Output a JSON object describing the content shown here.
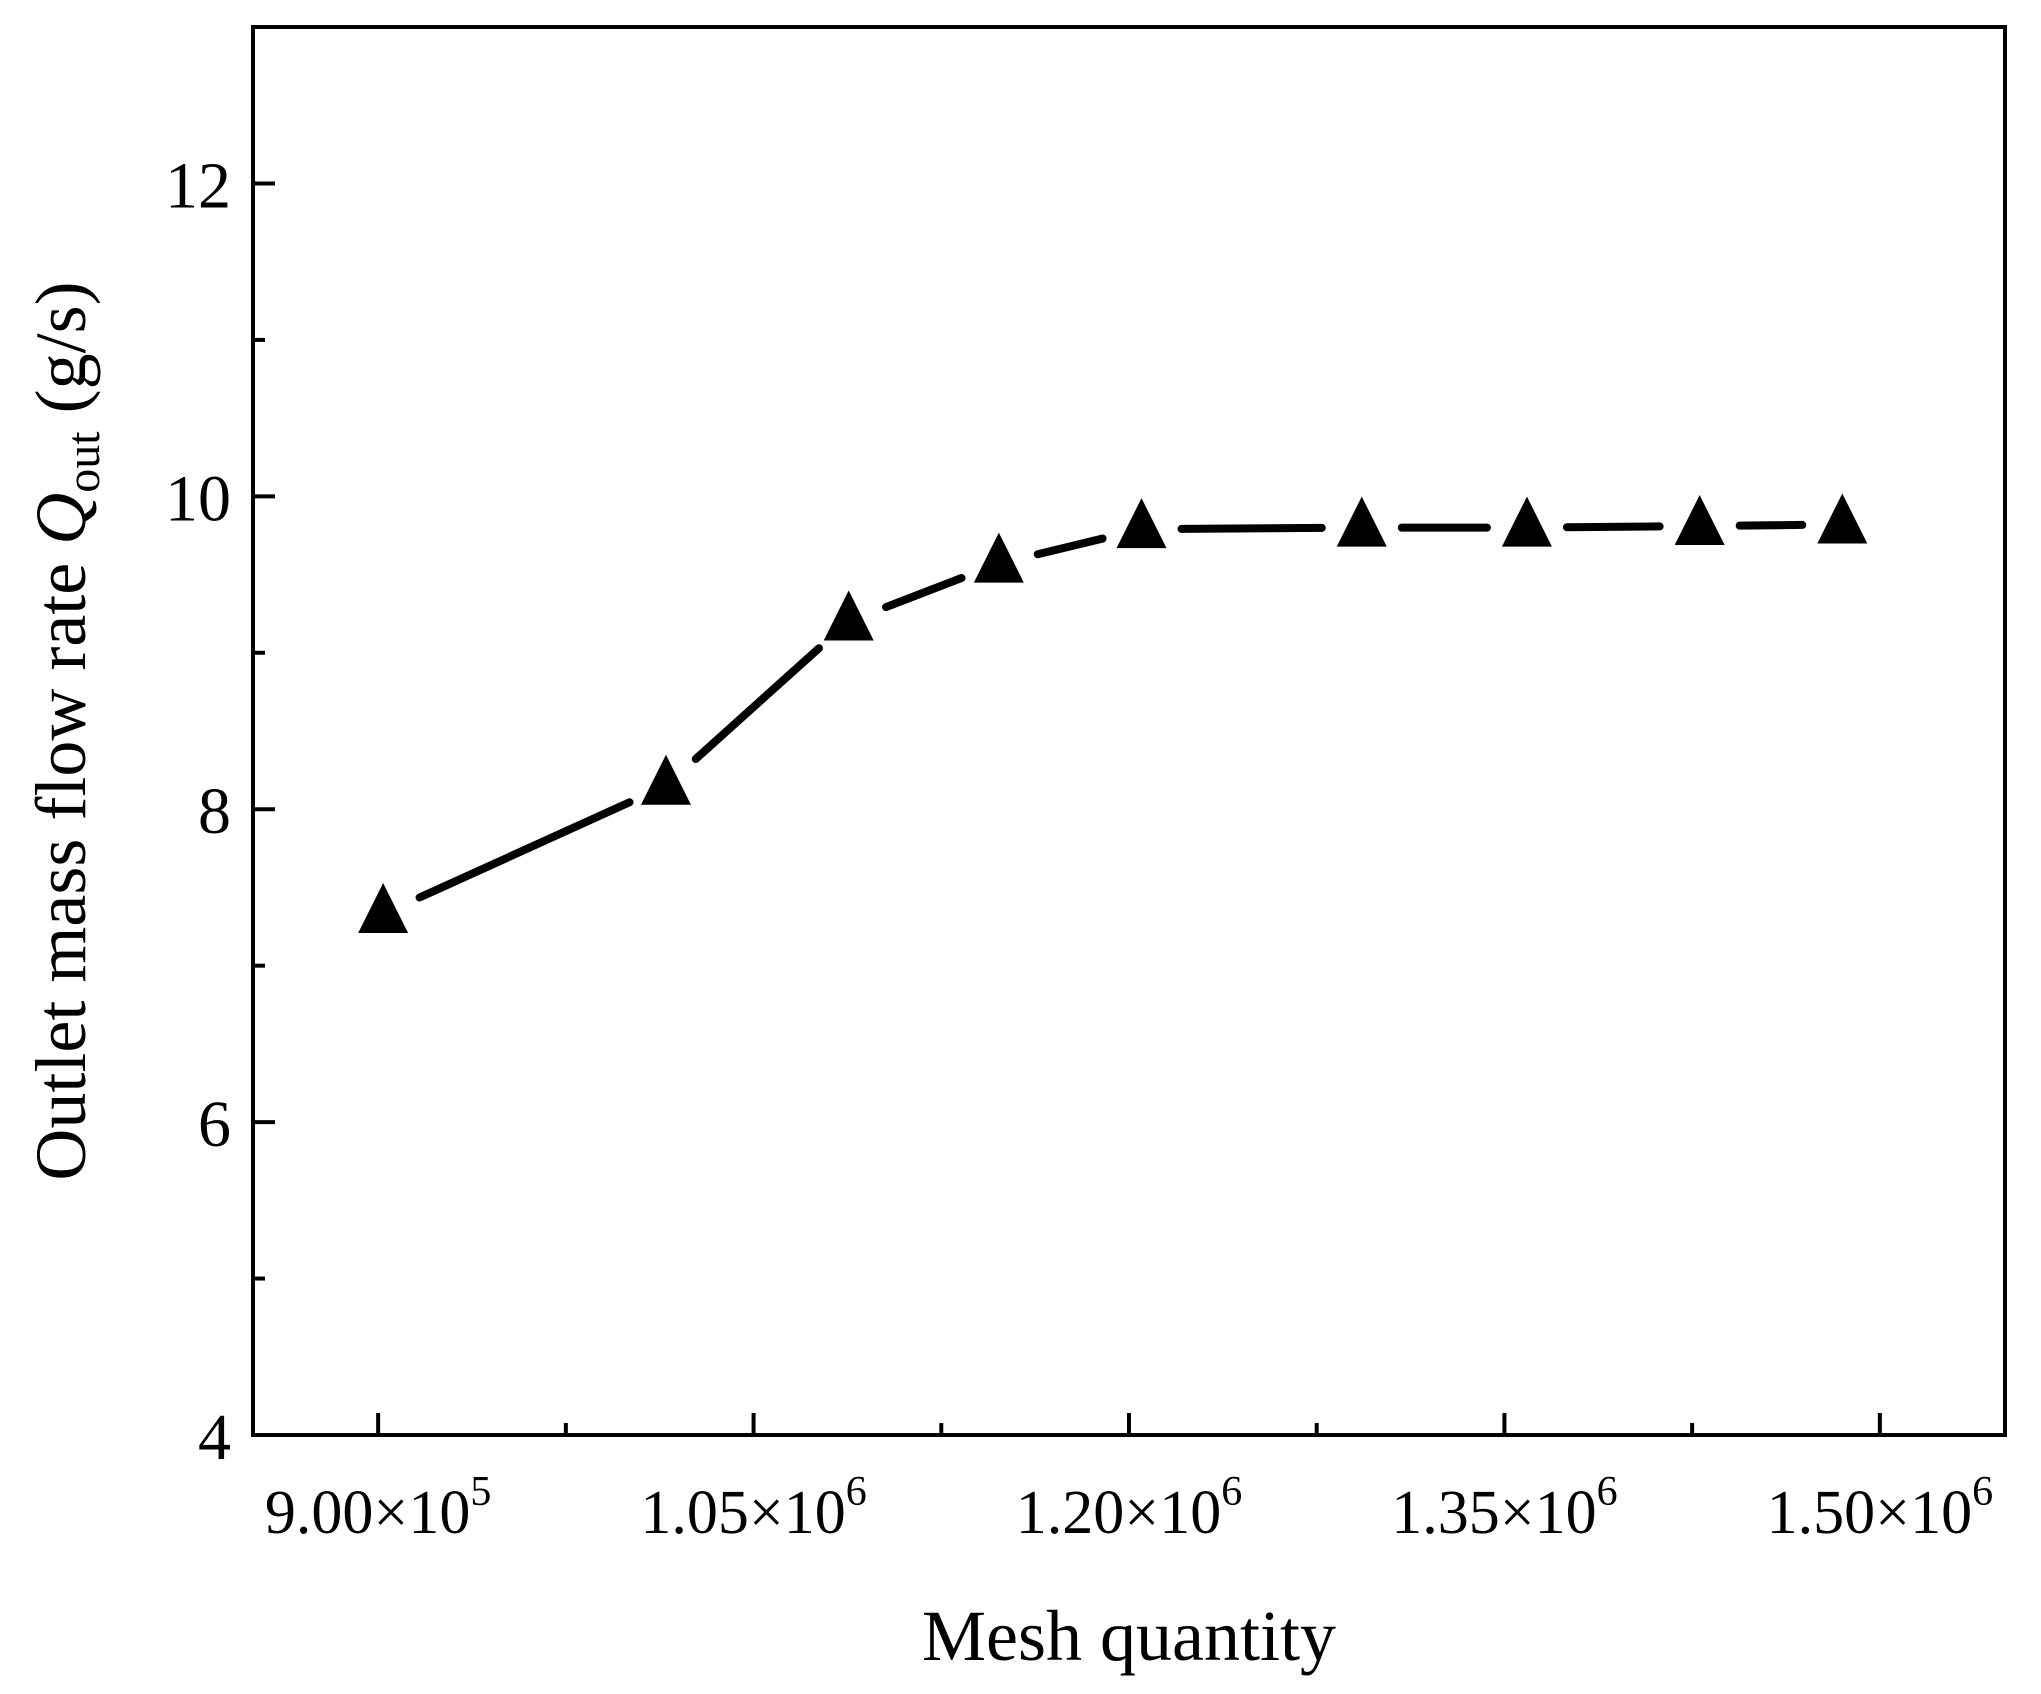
{
  "chart_data": {
    "type": "line",
    "title": "",
    "xlabel": "Mesh quantity",
    "ylabel": {
      "prefix": "Outlet mass flow rate ",
      "symbol": "Q",
      "subscript": "out",
      "unit": " (g/s)"
    },
    "xlim": [
      850000,
      1550000
    ],
    "ylim": [
      4,
      13
    ],
    "x_ticks": [
      {
        "value": 900000,
        "mantissa": "9.00",
        "exponent": "5"
      },
      {
        "value": 1050000,
        "mantissa": "1.05",
        "exponent": "6"
      },
      {
        "value": 1200000,
        "mantissa": "1.20",
        "exponent": "6"
      },
      {
        "value": 1350000,
        "mantissa": "1.35",
        "exponent": "6"
      },
      {
        "value": 1500000,
        "mantissa": "1.50",
        "exponent": "6"
      }
    ],
    "x_minor_ticks": [
      975000,
      1125000,
      1275000,
      1425000
    ],
    "y_ticks": [
      4,
      6,
      8,
      10,
      12
    ],
    "y_minor_ticks": [
      5,
      7,
      9,
      11
    ],
    "grid": false,
    "marker": "triangle",
    "line_style": "dashed",
    "color": "#000000",
    "series": [
      {
        "x": [
          902000,
          1015000,
          1088000,
          1148000,
          1205000,
          1293000,
          1359000,
          1428000,
          1485000
        ],
        "y": [
          7.33,
          8.15,
          9.2,
          9.57,
          9.79,
          9.8,
          9.8,
          9.81,
          9.82
        ]
      }
    ]
  }
}
